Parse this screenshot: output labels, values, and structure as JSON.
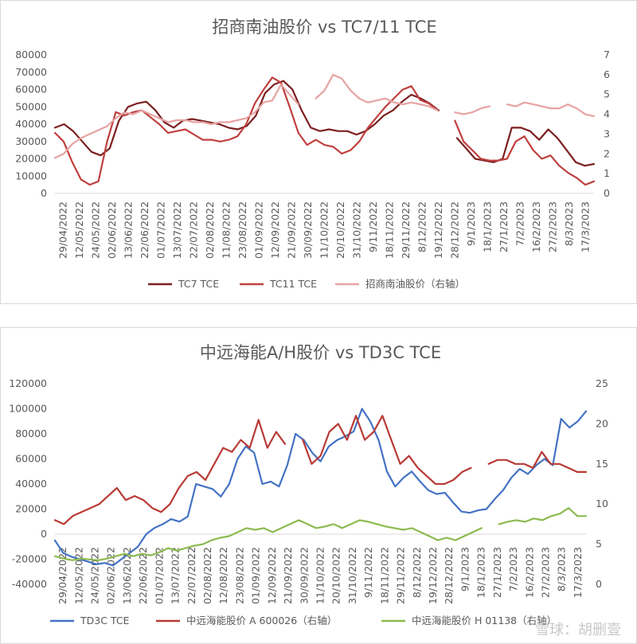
{
  "colors": {
    "dark_red": "#7b1f1f",
    "red": "#c0403e",
    "pink": "#e6a3a3",
    "blue": "#4472c4",
    "red2": "#b83a35",
    "green": "#8cba4f",
    "axis": "#d9d9d9",
    "text": "#595959"
  },
  "watermark": "雪球：胡删壹",
  "chart_data": [
    {
      "type": "line",
      "title": "招商南油股价  vs TC7/11  TCE",
      "xlabels": [
        "29/04/2022",
        "12/05/2022",
        "24/05/2022",
        "02/06/2022",
        "13/06/2022",
        "22/06/2022",
        "01/07/2022",
        "13/07/2022",
        "22/07/2022",
        "02/08/2022",
        "11/08/2022",
        "23/08/2022",
        "01/09/2022",
        "12/09/2022",
        "21/09/2022",
        "30/09/2022",
        "11/10/2022",
        "20/10/2022",
        "31/10/2022",
        "9/11/2022",
        "18/11/2022",
        "29/11/2022",
        "8/12/2022",
        "19/12/2022",
        "28/12/2022",
        "9/1/2023",
        "18/1/2023",
        "27/1/2023",
        "7/2/2023",
        "16/2/2023",
        "27/2/2023",
        "8/3/2023",
        "17/3/2023"
      ],
      "y_left": {
        "min": 0,
        "max": 80000,
        "ticks": [
          0,
          10000,
          20000,
          30000,
          40000,
          50000,
          60000,
          70000,
          80000
        ]
      },
      "y_right": {
        "min": 0,
        "max": 7,
        "ticks": [
          0,
          1,
          2,
          3,
          4,
          5,
          6,
          7
        ]
      },
      "legend": [
        "TC7 TCE",
        "TC11 TCE",
        "招商南油股价（右轴）"
      ],
      "series": [
        {
          "name": "TC7 TCE",
          "axis": "left",
          "color_key": "dark_red",
          "width": 2.2,
          "values": [
            38000,
            40000,
            36000,
            30000,
            24000,
            22000,
            26000,
            42000,
            50000,
            52000,
            53000,
            48000,
            41000,
            38000,
            42000,
            43000,
            42000,
            41000,
            40000,
            38000,
            37000,
            39000,
            45000,
            58000,
            63000,
            65000,
            60000,
            48000,
            38000,
            36000,
            37000,
            36000,
            36000,
            34000,
            36000,
            40000,
            45000,
            48000,
            53000,
            57000,
            55000,
            52000,
            48000,
            null,
            32000,
            26000,
            20000,
            19000,
            18000,
            20000,
            38000,
            38000,
            36000,
            31000,
            37000,
            32000,
            25000,
            18000,
            16000,
            17000
          ]
        },
        {
          "name": "TC11 TCE",
          "axis": "left",
          "color_key": "red",
          "width": 2.2,
          "values": [
            35000,
            30000,
            18000,
            8000,
            5000,
            7000,
            30000,
            47000,
            45000,
            47000,
            48000,
            44000,
            40000,
            35000,
            36000,
            37000,
            34000,
            31000,
            31000,
            30000,
            31000,
            33000,
            40000,
            52000,
            60000,
            67000,
            64000,
            50000,
            35000,
            28000,
            31000,
            28000,
            27000,
            23000,
            25000,
            30000,
            38000,
            44000,
            50000,
            55000,
            60000,
            62000,
            54000,
            52000,
            48000,
            null,
            42000,
            30000,
            25000,
            20000,
            19000,
            19000,
            20000,
            30000,
            33000,
            25000,
            20000,
            22000,
            16000,
            12000,
            9000,
            5000,
            7000
          ]
        },
        {
          "name": "招商南油股价（右轴）",
          "axis": "right",
          "color_key": "pink",
          "width": 2.2,
          "values": [
            1.8,
            2.0,
            2.5,
            2.8,
            3.0,
            3.2,
            3.4,
            3.8,
            4.1,
            4.0,
            4.2,
            4.0,
            3.8,
            3.6,
            3.7,
            3.7,
            3.6,
            3.6,
            3.5,
            3.6,
            3.6,
            3.7,
            3.8,
            4.1,
            4.6,
            4.7,
            5.5,
            5.0,
            4.5,
            null,
            4.8,
            5.2,
            6.0,
            5.8,
            5.2,
            4.8,
            4.6,
            4.7,
            4.8,
            4.6,
            4.5,
            4.6,
            4.5,
            4.4,
            4.2,
            null,
            4.1,
            4.0,
            4.1,
            4.3,
            4.4,
            null,
            4.5,
            4.4,
            4.6,
            4.5,
            4.4,
            4.3,
            4.3,
            4.5,
            4.3,
            4.0,
            3.9
          ]
        }
      ]
    },
    {
      "type": "line",
      "title": "中远海能A/H股价  vs TD3C TCE",
      "xlabels": [
        "29/04/2022",
        "12/05/2022",
        "24/05/2022",
        "02/06/2022",
        "13/06/2022",
        "22/06/2022",
        "01/07/2022",
        "13/07/2022",
        "22/07/2022",
        "02/08/2022",
        "12/08/2022",
        "23/08/2022",
        "01/09/2022",
        "12/09/2022",
        "21/09/2022",
        "30/09/2022",
        "11/10/2022",
        "20/10/2022",
        "31/10/2022",
        "9/11/2022",
        "18/11/2022",
        "29/11/2022",
        "8/12/2022",
        "19/12/2022",
        "28/12/2022",
        "9/1/2023",
        "18/1/2023",
        "27/1/2023",
        "7/2/2023",
        "16/2/2023",
        "27/2/2023",
        "8/3/2023",
        "17/3/2023"
      ],
      "y_left": {
        "min": -40000,
        "max": 120000,
        "ticks": [
          -40000,
          -20000,
          0,
          20000,
          40000,
          60000,
          80000,
          100000,
          120000
        ]
      },
      "y_right": {
        "min": 0,
        "max": 25,
        "ticks": [
          0,
          5,
          10,
          15,
          20,
          25
        ]
      },
      "legend": [
        "TD3C TCE",
        "中远海能股价 A 600026（右轴）",
        "中远海能股价 H 01138（右轴）"
      ],
      "series": [
        {
          "name": "TD3C TCE",
          "axis": "left",
          "color_key": "blue",
          "width": 2.2,
          "values": [
            -5000,
            -15000,
            -18000,
            -20000,
            -22000,
            -24000,
            -23000,
            -25000,
            -20000,
            -15000,
            -10000,
            0,
            5000,
            8000,
            12000,
            10000,
            14000,
            40000,
            38000,
            36000,
            30000,
            40000,
            60000,
            70000,
            65000,
            40000,
            42000,
            38000,
            55000,
            80000,
            75000,
            65000,
            58000,
            70000,
            75000,
            78000,
            82000,
            100000,
            90000,
            75000,
            50000,
            38000,
            45000,
            50000,
            42000,
            35000,
            32000,
            33000,
            25000,
            18000,
            17000,
            19000,
            20000,
            28000,
            35000,
            45000,
            52000,
            48000,
            55000,
            60000,
            55000,
            92000,
            85000,
            90000,
            98000
          ]
        },
        {
          "name": "中远海能股价 A 600026（右轴）",
          "axis": "right",
          "color_key": "red2",
          "width": 2.2,
          "values": [
            8.0,
            7.5,
            8.5,
            9.0,
            9.5,
            10.0,
            11.0,
            12.0,
            10.5,
            11.0,
            10.5,
            9.5,
            9.0,
            10.0,
            12.0,
            13.5,
            14.0,
            13.0,
            15.0,
            17.0,
            16.5,
            18.0,
            17.0,
            20.5,
            17.0,
            19.0,
            17.5,
            null,
            18.0,
            15.0,
            16.0,
            19.0,
            20.0,
            18.0,
            21.0,
            18.0,
            19.0,
            21.0,
            18.0,
            15.0,
            16.0,
            14.5,
            13.5,
            12.5,
            12.5,
            13.0,
            14.0,
            14.5,
            null,
            15.0,
            15.5,
            15.5,
            15.0,
            15.0,
            14.5,
            16.5,
            15.0,
            15.0,
            14.5,
            14.0,
            14.0
          ]
        },
        {
          "name": "中远海能股价 H 01138（右轴）",
          "axis": "right",
          "color_key": "green",
          "width": 2.2,
          "values": [
            3.5,
            3.2,
            3.0,
            3.2,
            3.1,
            3.0,
            3.2,
            3.5,
            3.8,
            3.5,
            3.8,
            3.6,
            4.0,
            4.5,
            4.2,
            4.5,
            4.8,
            5.0,
            5.5,
            5.8,
            6.0,
            6.5,
            7.0,
            6.8,
            7.0,
            6.5,
            7.0,
            7.5,
            8.0,
            7.5,
            7.0,
            7.2,
            7.5,
            7.0,
            7.5,
            8.0,
            7.8,
            7.5,
            7.2,
            7.0,
            6.8,
            7.0,
            6.5,
            6.0,
            5.5,
            5.8,
            5.5,
            6.0,
            6.5,
            7.0,
            null,
            7.5,
            7.8,
            8.0,
            7.8,
            8.2,
            8.0,
            8.5,
            8.8,
            9.5,
            8.5,
            8.5
          ]
        }
      ]
    }
  ]
}
